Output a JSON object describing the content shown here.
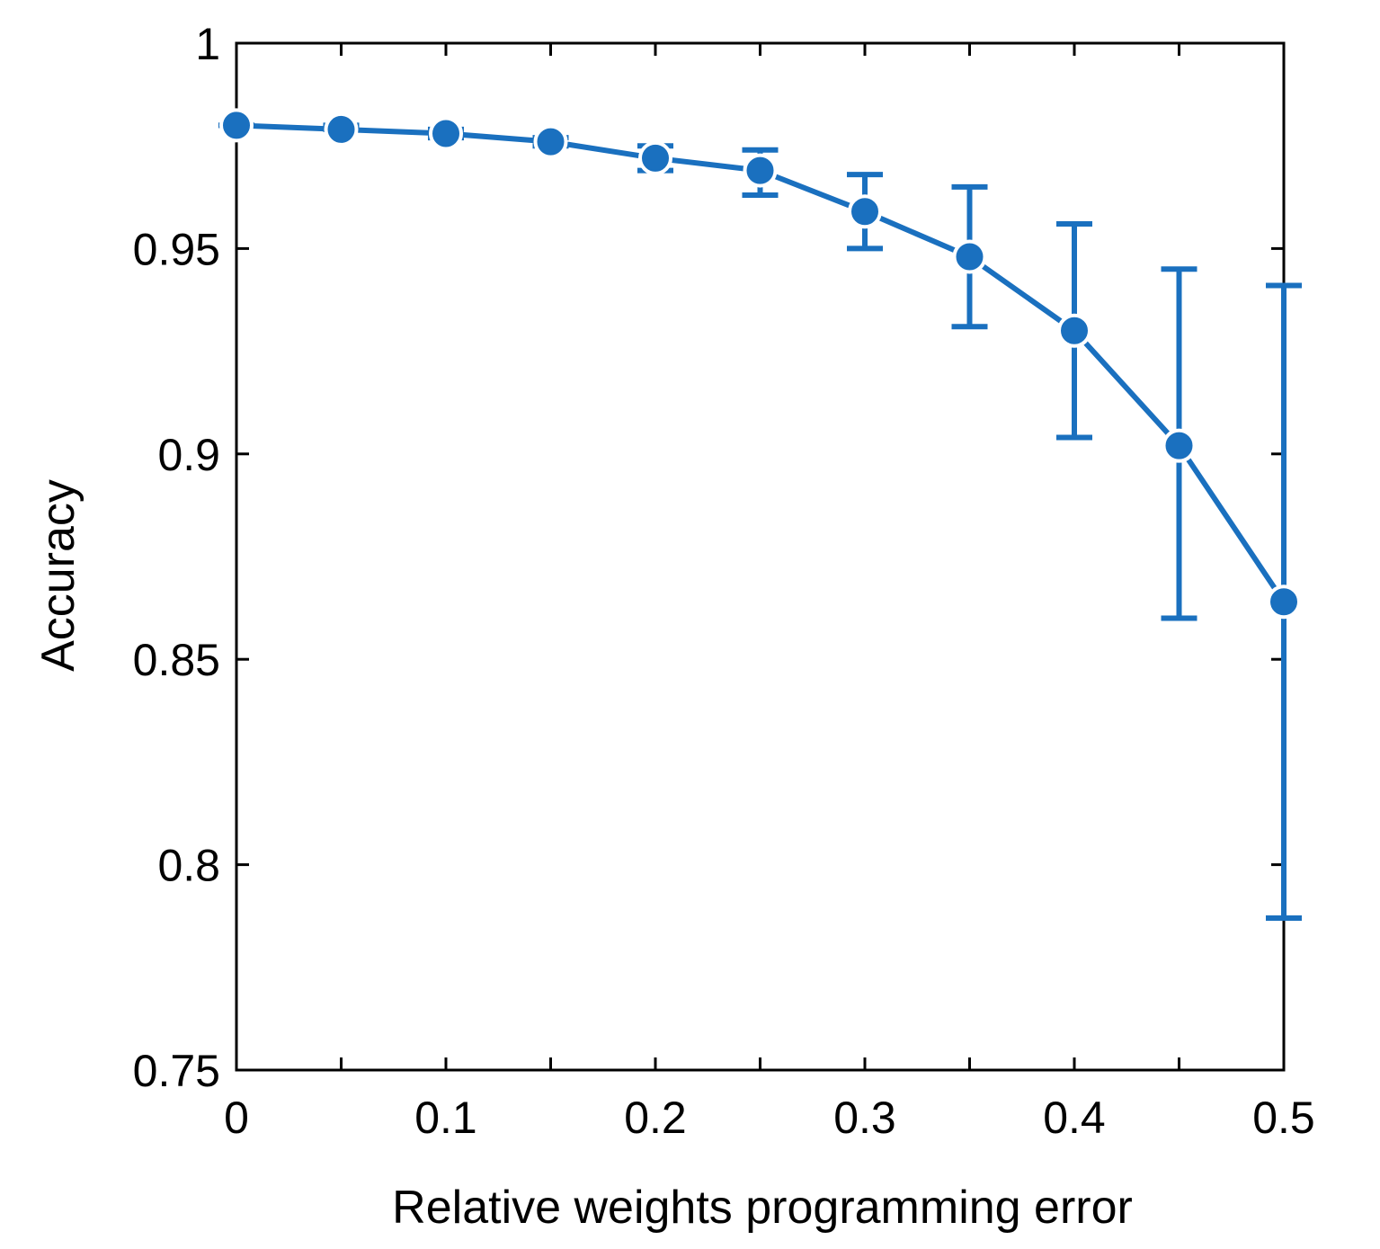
{
  "chart_data": {
    "type": "line",
    "title": "",
    "xlabel": "Relative weights programming error",
    "ylabel": "Accuracy",
    "xlim": [
      0,
      0.5
    ],
    "ylim": [
      0.75,
      1
    ],
    "grid": false,
    "x_ticks": [
      0,
      0.05,
      0.1,
      0.15,
      0.2,
      0.25,
      0.3,
      0.35,
      0.4,
      0.45,
      0.5
    ],
    "x_tick_labels": [
      "0",
      "",
      "0.1",
      "",
      "0.2",
      "",
      "0.3",
      "",
      "0.4",
      "",
      "0.5"
    ],
    "y_ticks": [
      0.75,
      0.8,
      0.85,
      0.9,
      0.95,
      1
    ],
    "y_tick_labels": [
      "0.75",
      "0.8",
      "0.85",
      "0.9",
      "0.95",
      "1"
    ],
    "series": [
      {
        "name": "Accuracy",
        "color": "#1a70bf",
        "marker": "circle",
        "x": [
          0,
          0.05,
          0.1,
          0.15,
          0.2,
          0.25,
          0.3,
          0.35,
          0.4,
          0.45,
          0.5
        ],
        "y": [
          0.98,
          0.979,
          0.978,
          0.976,
          0.972,
          0.969,
          0.959,
          0.948,
          0.93,
          0.902,
          0.864
        ],
        "err_upper": [
          0.98,
          0.98,
          0.979,
          0.977,
          0.975,
          0.974,
          0.968,
          0.965,
          0.956,
          0.945,
          0.941
        ],
        "err_lower": [
          0.98,
          0.979,
          0.977,
          0.975,
          0.969,
          0.963,
          0.95,
          0.931,
          0.904,
          0.86,
          0.787
        ]
      }
    ]
  }
}
